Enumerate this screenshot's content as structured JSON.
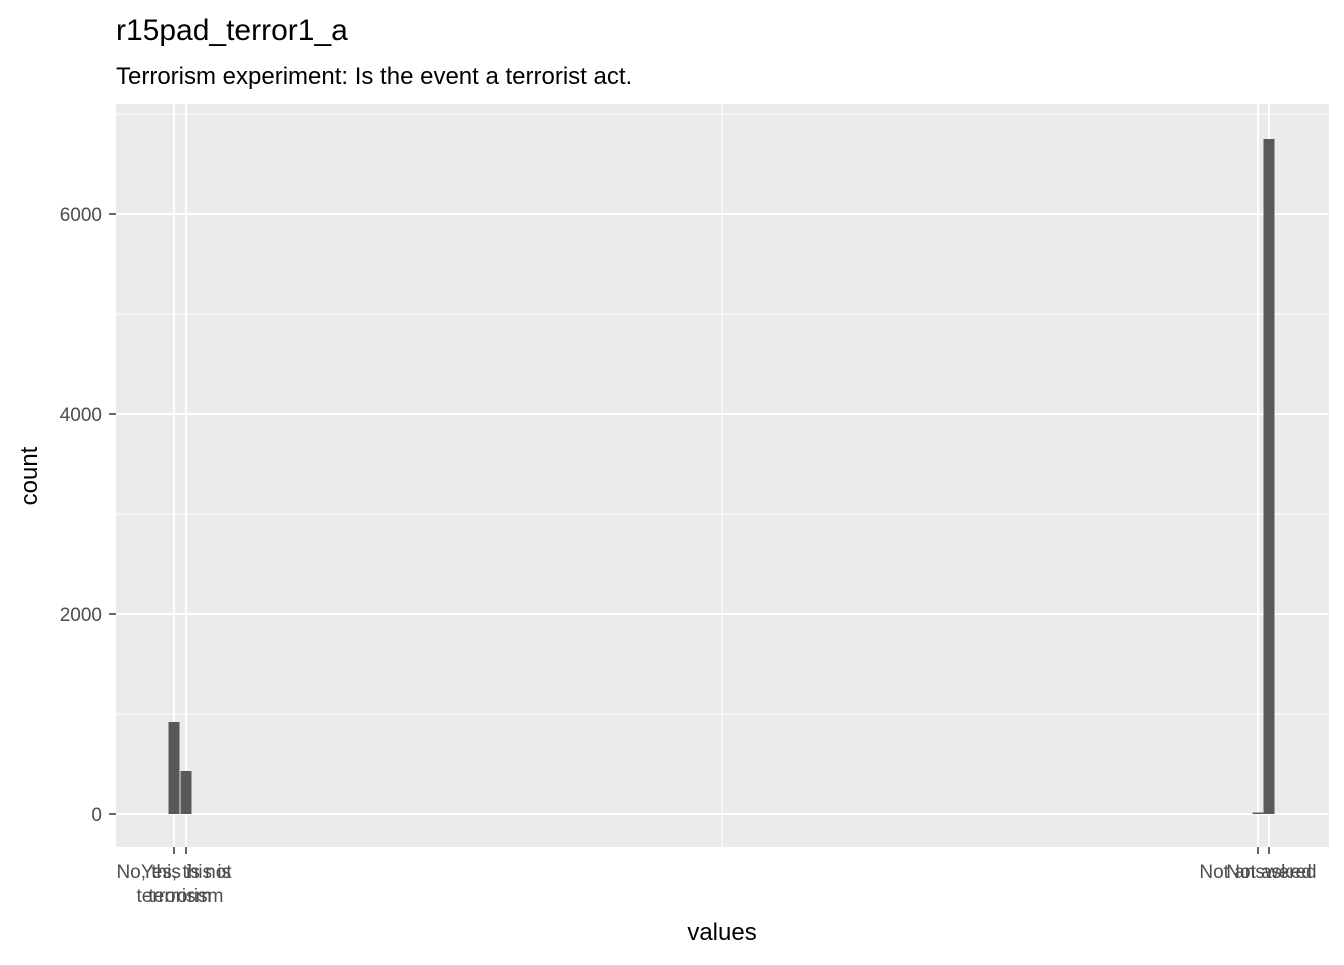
{
  "chart_data": {
    "type": "bar",
    "title": "r15pad_terror1_a",
    "subtitle": "Terrorism experiment: Is the event a terrorist act.",
    "xlabel": "values",
    "ylabel": "count",
    "ylim": [
      -330,
      7000
    ],
    "y_ticks": [
      0,
      2000,
      4000,
      6000
    ],
    "y_tick_labels": [
      "0",
      "2000",
      "4000",
      "6000"
    ],
    "grid": true,
    "legend": "none",
    "colors": {
      "panel_background": "#ebebeb",
      "grid": "#ffffff",
      "bar": "#595959",
      "tick_label": "#4d4d4d"
    },
    "x_tick_labels": [
      [
        "No, this is not",
        "terrorism"
      ],
      [
        "Yes, this is",
        "terrorism"
      ],
      [
        "Not answered"
      ],
      [
        "Not asked"
      ]
    ],
    "values": [
      {
        "category": "No, this is not terrorism",
        "count": 920
      },
      {
        "category": "Yes, this is terrorism",
        "count": 430
      },
      {
        "category": "Not answered",
        "count": 15
      },
      {
        "category": "Not asked",
        "count": 6750
      }
    ]
  }
}
